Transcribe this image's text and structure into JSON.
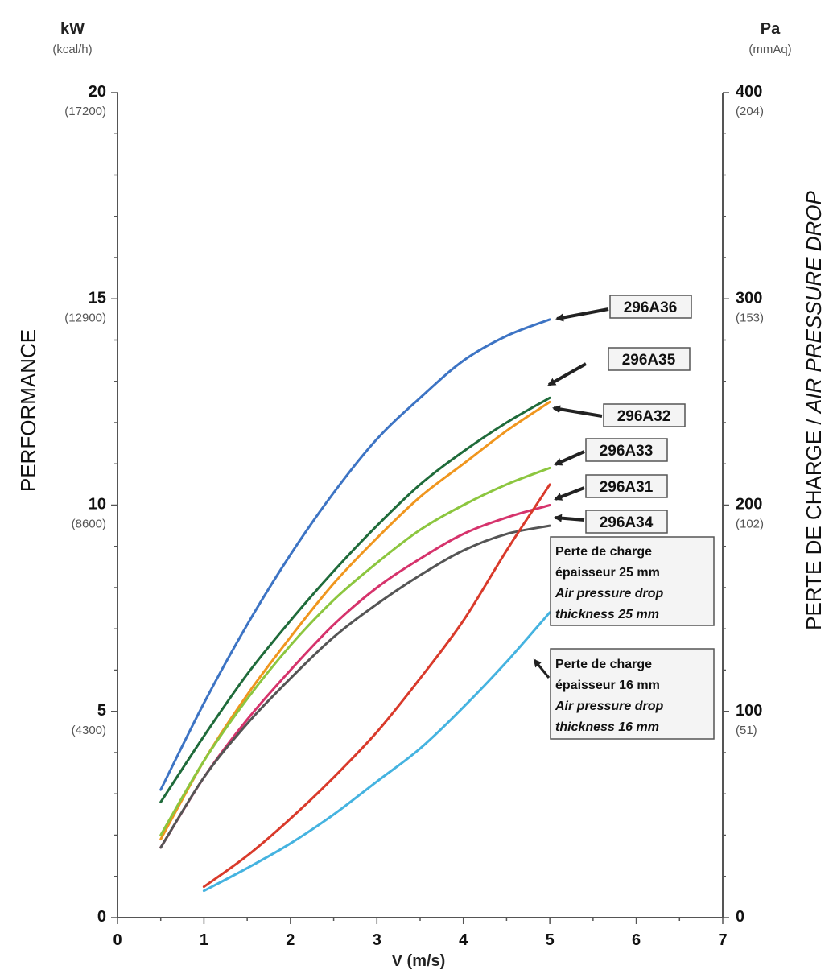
{
  "chart_data": {
    "type": "line",
    "xlabel": "V (m/s)",
    "x_ticks": [
      "0",
      "1",
      "2",
      "3",
      "4",
      "5",
      "6",
      "7"
    ],
    "xlim": [
      0,
      7
    ],
    "left_axis": {
      "title": "PERFORMANCE",
      "unit_main": "kW",
      "unit_sub": "(kcal/h)",
      "ylim": [
        0,
        20
      ],
      "ticks": [
        {
          "value": 0,
          "main": "0",
          "sub": ""
        },
        {
          "value": 5,
          "main": "5",
          "sub": "(4300)"
        },
        {
          "value": 10,
          "main": "10",
          "sub": "(8600)"
        },
        {
          "value": 15,
          "main": "15",
          "sub": "(12900)"
        },
        {
          "value": 20,
          "main": "20",
          "sub": "(17200)"
        }
      ]
    },
    "right_axis": {
      "title_regular": "PERTE DE CHARGE / ",
      "title_italic": "AIR PRESSURE DROP",
      "unit_main": "Pa",
      "unit_sub": "(mmAq)",
      "ylim": [
        0,
        400
      ],
      "ticks": [
        {
          "value": 0,
          "main": "0",
          "sub": ""
        },
        {
          "value": 100,
          "main": "100",
          "sub": "(51)"
        },
        {
          "value": 200,
          "main": "200",
          "sub": "(102)"
        },
        {
          "value": 300,
          "main": "300",
          "sub": "(153)"
        },
        {
          "value": 400,
          "main": "400",
          "sub": "(204)"
        }
      ]
    },
    "series": [
      {
        "name": "296A36",
        "axis": "left",
        "color": "#3d74c4",
        "x": [
          0.5,
          1,
          1.5,
          2,
          2.5,
          3,
          3.5,
          4,
          4.5,
          5
        ],
        "y": [
          3.1,
          5.2,
          7.1,
          8.8,
          10.3,
          11.6,
          12.6,
          13.5,
          14.1,
          14.5
        ]
      },
      {
        "name": "296A35",
        "axis": "left",
        "color": "#1f6b3a",
        "x": [
          0.5,
          1,
          1.5,
          2,
          2.5,
          3,
          3.5,
          4,
          4.5,
          5
        ],
        "y": [
          2.8,
          4.4,
          5.9,
          7.2,
          8.4,
          9.5,
          10.5,
          11.3,
          12.0,
          12.6
        ]
      },
      {
        "name": "296A32",
        "axis": "left",
        "color": "#f0961e",
        "x": [
          0.5,
          1,
          1.5,
          2,
          2.5,
          3,
          3.5,
          4,
          4.5,
          5
        ],
        "y": [
          1.9,
          3.8,
          5.4,
          6.8,
          8.1,
          9.2,
          10.2,
          11.0,
          11.8,
          12.5
        ]
      },
      {
        "name": "296A33",
        "axis": "left",
        "color": "#8cc63f",
        "x": [
          0.5,
          1,
          1.5,
          2,
          2.5,
          3,
          3.5,
          4,
          4.5,
          5
        ],
        "y": [
          2.0,
          3.8,
          5.3,
          6.6,
          7.7,
          8.6,
          9.4,
          10.0,
          10.5,
          10.9
        ]
      },
      {
        "name": "296A31",
        "axis": "left",
        "color": "#d6336c",
        "x": [
          0.5,
          1,
          1.5,
          2,
          2.5,
          3,
          3.5,
          4,
          4.5,
          5
        ],
        "y": [
          1.7,
          3.4,
          4.8,
          6.0,
          7.1,
          8.0,
          8.7,
          9.3,
          9.7,
          10.0
        ]
      },
      {
        "name": "296A34",
        "axis": "left",
        "color": "#555555",
        "x": [
          0.5,
          1,
          1.5,
          2,
          2.5,
          3,
          3.5,
          4,
          4.5,
          5
        ],
        "y": [
          1.7,
          3.4,
          4.7,
          5.8,
          6.8,
          7.6,
          8.3,
          8.9,
          9.3,
          9.5
        ]
      },
      {
        "name": "",
        "axis": "right",
        "color": "#d93a2b",
        "x": [
          1,
          1.5,
          2,
          2.5,
          3,
          3.5,
          4,
          4.5,
          5
        ],
        "y": [
          15,
          30,
          48,
          68,
          90,
          116,
          144,
          178,
          210
        ]
      },
      {
        "name": "",
        "axis": "right",
        "color": "#45b3e0",
        "x": [
          1,
          1.5,
          2,
          2.5,
          3,
          3.5,
          4,
          4.5,
          5
        ],
        "y": [
          13,
          24,
          36,
          50,
          66,
          82,
          102,
          124,
          148
        ]
      }
    ],
    "annotations": [
      {
        "lines": [
          "296A36"
        ]
      },
      {
        "lines": [
          "296A35"
        ]
      },
      {
        "lines": [
          "296A32"
        ]
      },
      {
        "lines": [
          "296A33"
        ]
      },
      {
        "lines": [
          "296A31"
        ]
      },
      {
        "lines": [
          "296A34"
        ]
      },
      {
        "lines": [
          "Perte de charge",
          "épaisseur 25 mm",
          "Air pressure drop",
          "thickness 25 mm"
        ]
      },
      {
        "lines": [
          "Perte de charge",
          "épaisseur 16 mm",
          "Air pressure drop",
          "thickness 16 mm"
        ]
      }
    ]
  }
}
